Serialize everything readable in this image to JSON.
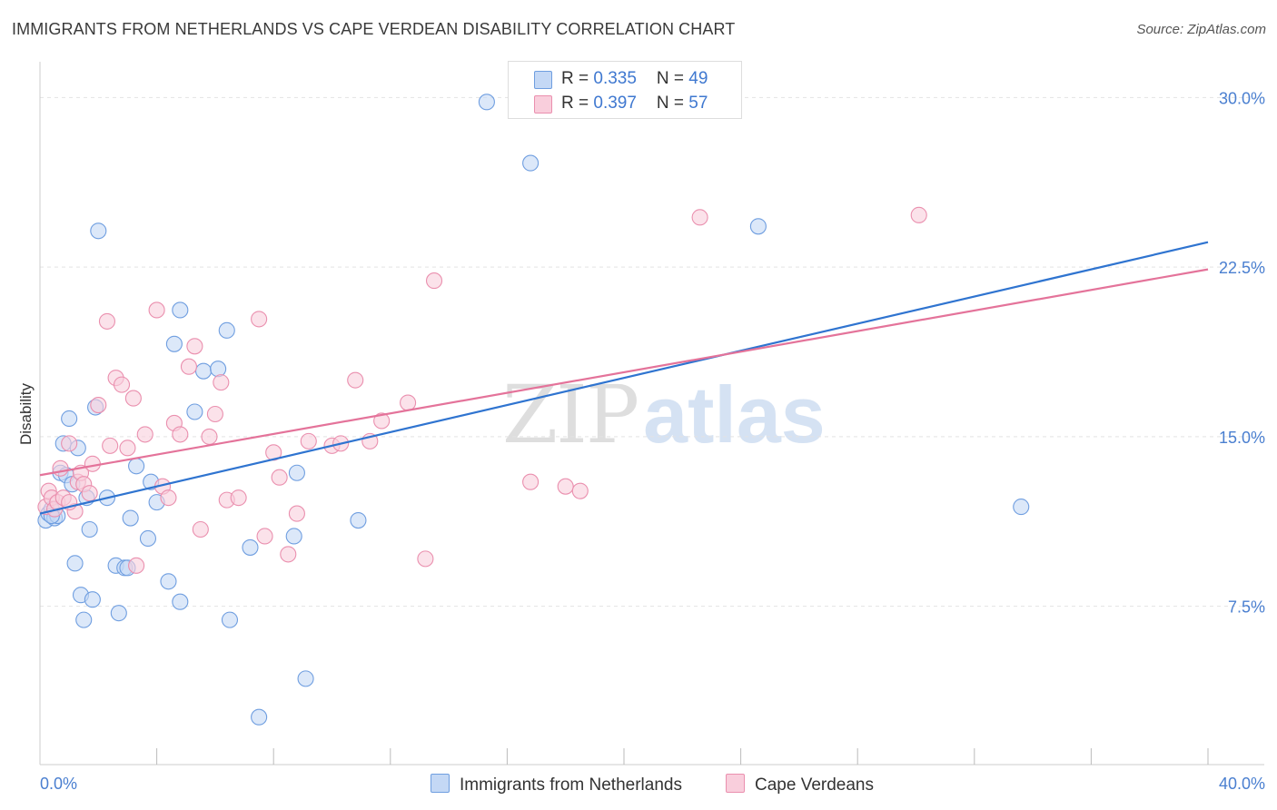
{
  "title": "IMMIGRANTS FROM NETHERLANDS VS CAPE VERDEAN DISABILITY CORRELATION CHART",
  "source": "Source: ZipAtlas.com",
  "watermark": {
    "part1": "ZIP",
    "part2": "atlas"
  },
  "legend": {
    "rows": [
      {
        "r_label": "R = ",
        "r_value": "0.335",
        "n_label": "N = ",
        "n_value": "49"
      },
      {
        "r_label": "R = ",
        "r_value": "0.397",
        "n_label": "N = ",
        "n_value": "57"
      }
    ]
  },
  "bottom_legend": {
    "series1": "Immigrants from Netherlands",
    "series2": "Cape Verdeans"
  },
  "colors": {
    "blue_fill": "#c4d8f5",
    "blue_stroke": "#6f9ee0",
    "blue_line": "#2f74d0",
    "pink_fill": "#f9cedc",
    "pink_stroke": "#ea8fae",
    "pink_line": "#e4739a",
    "tick_text": "#4a7fd0"
  },
  "chart_data": {
    "type": "scatter",
    "title": "IMMIGRANTS FROM NETHERLANDS VS CAPE VERDEAN DISABILITY CORRELATION CHART",
    "xlabel": "",
    "ylabel": "Disability",
    "xlim": [
      0,
      40
    ],
    "ylim": [
      0.5,
      31.5
    ],
    "x_ticks_labeled": [
      {
        "value": 0,
        "label": "0.0%"
      },
      {
        "value": 40,
        "label": "40.0%"
      }
    ],
    "x_ticks_minor": [
      4,
      8,
      12,
      16,
      20,
      24,
      28,
      32,
      36
    ],
    "y_ticks": [
      {
        "value": 7.5,
        "label": "7.5%"
      },
      {
        "value": 15.0,
        "label": "15.0%"
      },
      {
        "value": 22.5,
        "label": "22.5%"
      },
      {
        "value": 30.0,
        "label": "30.0%"
      }
    ],
    "grid": true,
    "series": [
      {
        "name": "Immigrants from Netherlands",
        "color": "blue",
        "trend": {
          "x": [
            0,
            40
          ],
          "y": [
            11.6,
            23.6
          ]
        },
        "points": [
          [
            0.2,
            11.3
          ],
          [
            0.3,
            11.6
          ],
          [
            0.4,
            11.8
          ],
          [
            0.5,
            11.4
          ],
          [
            0.6,
            11.5
          ],
          [
            0.7,
            13.4
          ],
          [
            0.8,
            14.7
          ],
          [
            0.9,
            13.3
          ],
          [
            1.0,
            15.8
          ],
          [
            1.1,
            12.9
          ],
          [
            1.2,
            9.4
          ],
          [
            1.3,
            14.5
          ],
          [
            1.4,
            8.0
          ],
          [
            1.5,
            6.9
          ],
          [
            1.6,
            12.3
          ],
          [
            1.7,
            10.9
          ],
          [
            1.8,
            7.8
          ],
          [
            1.9,
            16.3
          ],
          [
            2.0,
            24.1
          ],
          [
            2.3,
            12.3
          ],
          [
            2.6,
            9.3
          ],
          [
            2.7,
            7.2
          ],
          [
            2.9,
            9.2
          ],
          [
            3.0,
            9.2
          ],
          [
            3.1,
            11.4
          ],
          [
            3.3,
            13.7
          ],
          [
            3.7,
            10.5
          ],
          [
            3.8,
            13.0
          ],
          [
            4.0,
            12.1
          ],
          [
            4.4,
            8.6
          ],
          [
            4.6,
            19.1
          ],
          [
            4.8,
            20.6
          ],
          [
            4.8,
            7.7
          ],
          [
            5.3,
            16.1
          ],
          [
            5.6,
            17.9
          ],
          [
            6.1,
            18.0
          ],
          [
            6.4,
            19.7
          ],
          [
            6.5,
            6.9
          ],
          [
            7.2,
            10.1
          ],
          [
            7.5,
            2.6
          ],
          [
            8.7,
            10.6
          ],
          [
            8.8,
            13.4
          ],
          [
            9.1,
            4.3
          ],
          [
            10.9,
            11.3
          ],
          [
            15.3,
            29.8
          ],
          [
            16.8,
            27.1
          ],
          [
            24.6,
            24.3
          ],
          [
            33.6,
            11.9
          ],
          [
            0.4,
            11.5
          ]
        ]
      },
      {
        "name": "Cape Verdeans",
        "color": "pink",
        "trend": {
          "x": [
            0,
            40
          ],
          "y": [
            13.3,
            22.4
          ]
        },
        "points": [
          [
            0.2,
            11.9
          ],
          [
            0.3,
            12.6
          ],
          [
            0.4,
            12.3
          ],
          [
            0.5,
            11.8
          ],
          [
            0.6,
            12.1
          ],
          [
            0.7,
            13.6
          ],
          [
            0.8,
            12.3
          ],
          [
            1.0,
            14.7
          ],
          [
            1.2,
            11.7
          ],
          [
            1.3,
            13.0
          ],
          [
            1.4,
            13.4
          ],
          [
            1.5,
            12.9
          ],
          [
            1.7,
            12.5
          ],
          [
            1.8,
            13.8
          ],
          [
            2.0,
            16.4
          ],
          [
            2.3,
            20.1
          ],
          [
            2.4,
            14.6
          ],
          [
            2.6,
            17.6
          ],
          [
            2.8,
            17.3
          ],
          [
            3.0,
            14.5
          ],
          [
            3.2,
            16.7
          ],
          [
            3.3,
            9.3
          ],
          [
            3.6,
            15.1
          ],
          [
            4.0,
            20.6
          ],
          [
            4.2,
            12.8
          ],
          [
            4.4,
            12.3
          ],
          [
            4.6,
            15.6
          ],
          [
            4.8,
            15.1
          ],
          [
            5.1,
            18.1
          ],
          [
            5.3,
            19.0
          ],
          [
            5.5,
            10.9
          ],
          [
            5.8,
            15.0
          ],
          [
            6.0,
            16.0
          ],
          [
            6.2,
            17.4
          ],
          [
            6.4,
            12.2
          ],
          [
            6.8,
            12.3
          ],
          [
            7.5,
            20.2
          ],
          [
            7.7,
            10.6
          ],
          [
            8.0,
            14.3
          ],
          [
            8.2,
            13.2
          ],
          [
            8.5,
            9.8
          ],
          [
            8.8,
            11.6
          ],
          [
            9.2,
            14.8
          ],
          [
            10.0,
            14.6
          ],
          [
            10.3,
            14.7
          ],
          [
            10.8,
            17.5
          ],
          [
            11.3,
            14.8
          ],
          [
            11.7,
            15.7
          ],
          [
            12.6,
            16.5
          ],
          [
            13.2,
            9.6
          ],
          [
            13.5,
            21.9
          ],
          [
            16.8,
            13.0
          ],
          [
            18.0,
            12.8
          ],
          [
            18.5,
            12.6
          ],
          [
            22.6,
            24.7
          ],
          [
            30.1,
            24.8
          ],
          [
            1.0,
            12.1
          ]
        ]
      }
    ]
  }
}
